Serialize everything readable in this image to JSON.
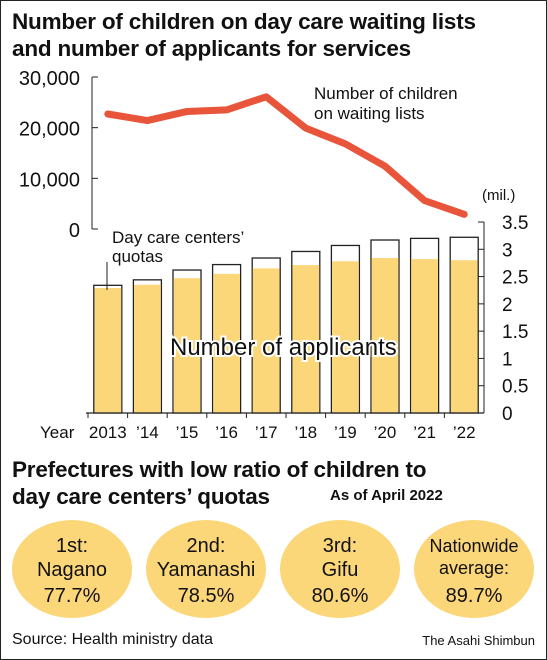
{
  "chart_data": [
    {
      "type": "line",
      "title": "Number of children on day care waiting lists",
      "series": [
        {
          "name": "Number of children on waiting lists",
          "x": [
            "2013",
            "2014",
            "2015",
            "2016",
            "2017",
            "2018",
            "2019",
            "2020",
            "2021",
            "2022"
          ],
          "values": [
            22700,
            21400,
            23200,
            23500,
            26100,
            19900,
            16800,
            12400,
            5600,
            2900
          ]
        }
      ],
      "ylim": [
        0,
        30000
      ],
      "yticks": [
        "0",
        "10,000",
        "20,000",
        "30,000"
      ],
      "color": "#e9553a"
    },
    {
      "type": "bar",
      "title": "number of applicants for services",
      "categories": [
        "2013",
        "’14",
        "’15",
        "’16",
        "’17",
        "’18",
        "’19",
        "’20",
        "’21",
        "’22"
      ],
      "series": [
        {
          "name": "Day care centers’ quotas",
          "values": [
            2.34,
            2.44,
            2.62,
            2.72,
            2.84,
            2.96,
            3.07,
            3.17,
            3.2,
            3.22
          ]
        },
        {
          "name": "Number of applicants",
          "values": [
            2.29,
            2.35,
            2.47,
            2.55,
            2.65,
            2.71,
            2.78,
            2.84,
            2.82,
            2.8
          ]
        }
      ],
      "ylim": [
        0,
        3.5
      ],
      "yticks": [
        "0",
        "0.5",
        "1",
        "1.5",
        "2",
        "2.5",
        "3",
        "3.5"
      ],
      "unit": "(mil.)",
      "xlabel": "Year",
      "bar_color": "#fbd77a"
    }
  ],
  "header": {
    "title_line1": "Number of children on day care waiting lists",
    "title_line2": "and number of applicants for services"
  },
  "labels": {
    "line_label_1": "Number of children",
    "line_label_2": "on waiting lists",
    "quota_label_1": "Day care centers’",
    "quota_label_2": "quotas",
    "applicants_label": "Number of applicants",
    "unit": "(mil.)",
    "year": "Year"
  },
  "prefectures": {
    "title_line1": "Prefectures with low ratio of children to",
    "title_line2": "day care centers’ quotas",
    "as_of": "As of April 2022",
    "items": [
      {
        "rank": "1st:",
        "name": "Nagano",
        "pct": "77.7%"
      },
      {
        "rank": "2nd:",
        "name": "Yamanashi",
        "pct": "78.5%"
      },
      {
        "rank": "3rd:",
        "name": "Gifu",
        "pct": "80.6%"
      },
      {
        "rank": "Nationwide",
        "name": "average:",
        "pct": "89.7%"
      }
    ]
  },
  "footer": {
    "source": "Source: Health ministry data",
    "credit": "The Asahi Shimbun"
  }
}
